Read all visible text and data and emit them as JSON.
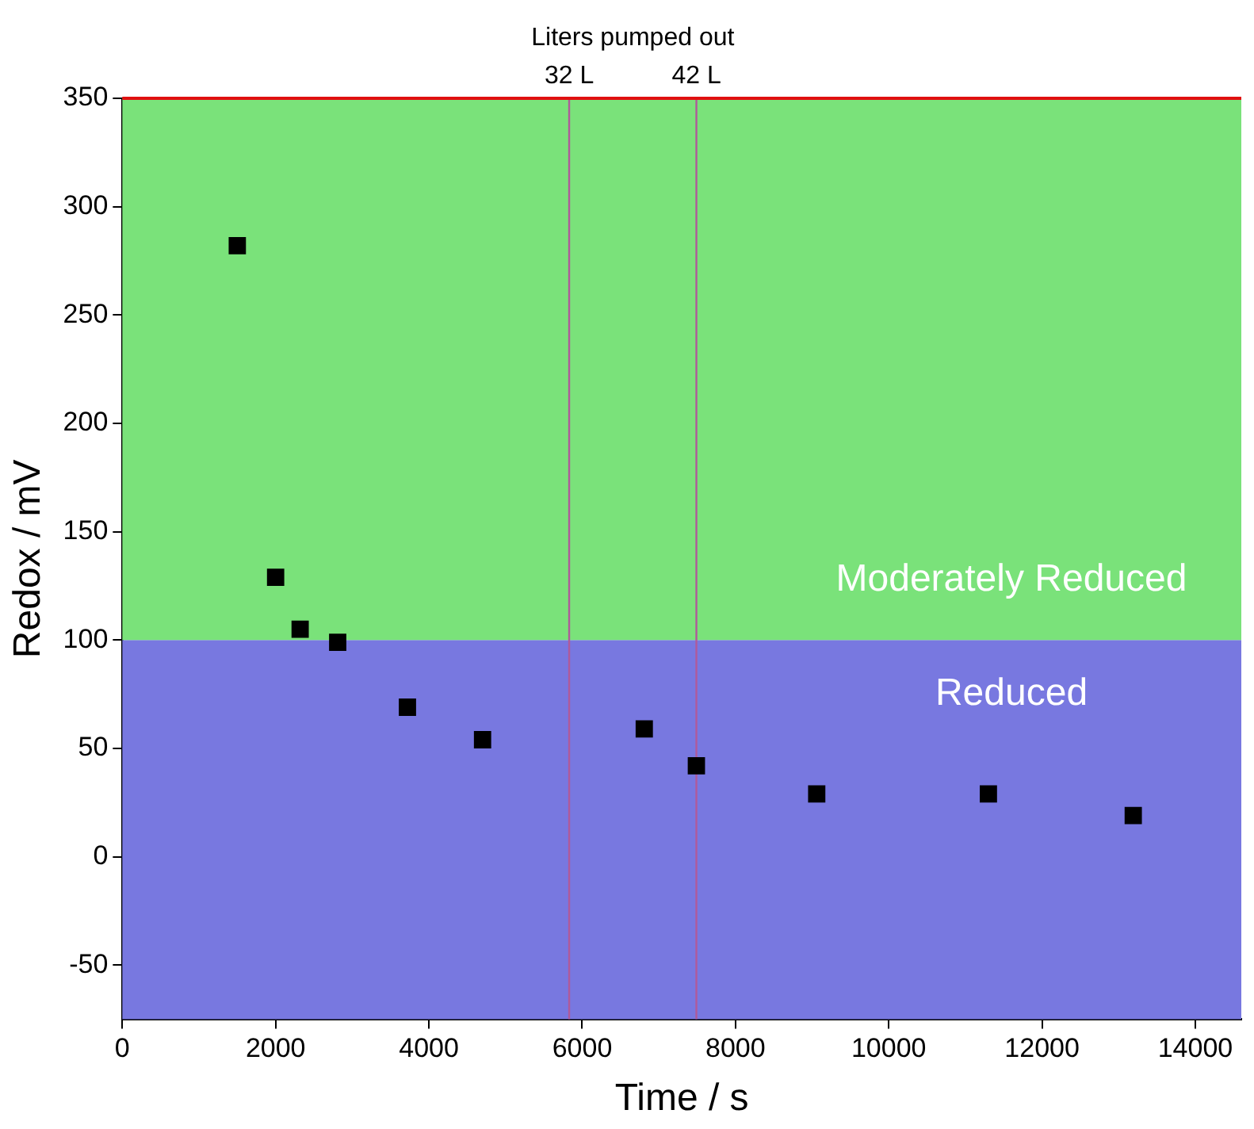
{
  "chart_data": {
    "type": "scatter",
    "title": "Liters pumped out",
    "xlabel": "Time / s",
    "ylabel": "Redox / mV",
    "x": [
      1500,
      2000,
      2320,
      2810,
      3720,
      4700,
      6810,
      7490,
      9060,
      11300,
      13190
    ],
    "series": [
      {
        "color": "#000000",
        "values": [
          282,
          129,
          105,
          99,
          69,
          54,
          59,
          42,
          29,
          29,
          19
        ]
      }
    ],
    "xlim": [
      0,
      14600
    ],
    "xticks": [
      0,
      2000,
      4000,
      6000,
      8000,
      10000,
      12000,
      14000
    ],
    "ylim": [
      -75,
      350
    ],
    "yticks": [
      -50,
      0,
      50,
      100,
      150,
      200,
      250,
      300,
      350
    ],
    "bands": [
      {
        "axis": "y",
        "from": -75,
        "to": 100,
        "label": "Reduced",
        "color": "#7878e0"
      },
      {
        "axis": "y",
        "from": 100,
        "to": 350,
        "label": "Moderately Reduced",
        "color": "#7ae27a"
      }
    ],
    "ref_lines": [
      {
        "axis": "x",
        "value": 5830,
        "label": "32 L",
        "color": "#b05a9a"
      },
      {
        "axis": "x",
        "value": 7490,
        "label": "42 L",
        "color": "#b05a9a"
      },
      {
        "axis": "y",
        "value": 350,
        "color": "#e01010"
      }
    ],
    "marker": "square",
    "legend": false,
    "grid": false
  }
}
